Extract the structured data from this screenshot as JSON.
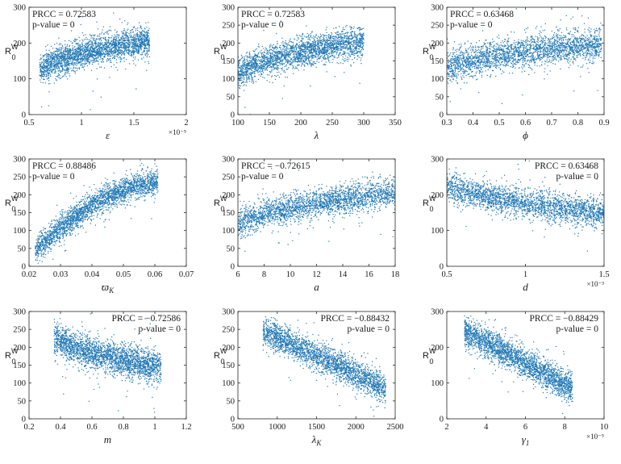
{
  "figure": {
    "point_color": "#1f77b4",
    "points_per_panel": 2500,
    "y_axis_label": "R",
    "y_axis_label_sup": "W",
    "y_axis_label_sub": "0"
  },
  "chart_data": [
    {
      "id": "eps",
      "type": "scatter",
      "xlabel": "ε",
      "prcc_text": "PRCC = 0.72583",
      "pvalue_text": "p-value = 0",
      "ann_position": "top-left",
      "xlim": [
        0.5,
        2
      ],
      "ylim": [
        0,
        300
      ],
      "xticks": [
        0.5,
        1,
        1.5,
        2
      ],
      "xtick_labels": [
        "0.5",
        "1",
        "1.5",
        "2"
      ],
      "yticks": [
        0,
        100,
        200,
        300
      ],
      "ytick_labels": [
        "0",
        "100",
        "200",
        "300"
      ],
      "x_multiplier": "×10⁻⁵",
      "x_range": [
        0.6,
        1.65
      ],
      "trend": "log",
      "y_start": 125,
      "y_end": 205,
      "noise": 20
    },
    {
      "id": "lambda",
      "type": "scatter",
      "xlabel": "λ",
      "prcc_text": "PRCC = 0.72583",
      "pvalue_text": "p-value = 0",
      "ann_position": "top-left",
      "xlim": [
        100,
        350
      ],
      "ylim": [
        0,
        300
      ],
      "xticks": [
        100,
        150,
        200,
        250,
        300,
        350
      ],
      "xtick_labels": [
        "100",
        "150",
        "200",
        "250",
        "300",
        "350"
      ],
      "yticks": [
        0,
        50,
        100,
        150,
        200,
        250,
        300
      ],
      "ytick_labels": [
        "0",
        "50",
        "100",
        "150",
        "200",
        "250",
        "300"
      ],
      "x_multiplier": "",
      "x_range": [
        100,
        300
      ],
      "trend": "log",
      "y_start": 115,
      "y_end": 205,
      "noise": 20
    },
    {
      "id": "phi",
      "type": "scatter",
      "xlabel": "ϕ",
      "prcc_text": "PRCC = 0.63468",
      "pvalue_text": "p-value = 0",
      "ann_position": "top-left",
      "xlim": [
        0.3,
        0.9
      ],
      "ylim": [
        0,
        300
      ],
      "xticks": [
        0.3,
        0.4,
        0.5,
        0.6,
        0.7,
        0.8,
        0.9
      ],
      "xtick_labels": [
        "0.3",
        "0.4",
        "0.5",
        "0.6",
        "0.7",
        "0.8",
        "0.9"
      ],
      "yticks": [
        0,
        50,
        100,
        150,
        200,
        250,
        300
      ],
      "ytick_labels": [
        "0",
        "50",
        "100",
        "150",
        "200",
        "250",
        "300"
      ],
      "x_multiplier": "",
      "x_range": [
        0.3,
        0.89
      ],
      "trend": "log",
      "y_start": 135,
      "y_end": 195,
      "noise": 22
    },
    {
      "id": "omega",
      "type": "scatter",
      "xlabel": "ϖ",
      "xlabel_sub": "K",
      "prcc_text": "PRCC = 0.88486",
      "pvalue_text": "p-value = 0",
      "ann_position": "top-left",
      "xlim": [
        0.02,
        0.07
      ],
      "ylim": [
        0,
        300
      ],
      "xticks": [
        0.02,
        0.03,
        0.04,
        0.05,
        0.06,
        0.07
      ],
      "xtick_labels": [
        "0.02",
        "0.03",
        "0.04",
        "0.05",
        "0.06",
        "0.07"
      ],
      "yticks": [
        0,
        50,
        100,
        150,
        200,
        250,
        300
      ],
      "ytick_labels": [
        "0",
        "50",
        "100",
        "150",
        "200",
        "250",
        "300"
      ],
      "x_multiplier": "",
      "x_range": [
        0.022,
        0.061
      ],
      "trend": "concave",
      "y_start": 45,
      "y_end": 235,
      "noise": 18
    },
    {
      "id": "a",
      "type": "scatter",
      "xlabel": "a",
      "prcc_text": "PRCC = −0.72615",
      "pvalue_text": "p-value = 0",
      "ann_position": "top-left",
      "xlim": [
        6,
        18
      ],
      "ylim": [
        0,
        300
      ],
      "xticks": [
        6,
        8,
        10,
        12,
        14,
        16,
        18
      ],
      "xtick_labels": [
        "6",
        "8",
        "10",
        "12",
        "14",
        "16",
        "18"
      ],
      "yticks": [
        0,
        50,
        100,
        150,
        200,
        250,
        300
      ],
      "ytick_labels": [
        "0",
        "50",
        "100",
        "150",
        "200",
        "250",
        "300"
      ],
      "x_multiplier": "",
      "x_range": [
        6,
        18
      ],
      "trend": "log",
      "y_start": 120,
      "y_end": 205,
      "noise": 20
    },
    {
      "id": "d",
      "type": "scatter",
      "xlabel": "d",
      "prcc_text": "PRCC = 0.63468",
      "pvalue_text": "p-value = 0",
      "ann_position": "top-right",
      "xlim": [
        0.5,
        1.5
      ],
      "ylim": [
        0,
        300
      ],
      "xticks": [
        0.5,
        1,
        1.5
      ],
      "xtick_labels": [
        "0.5",
        "1",
        "1.5"
      ],
      "yticks": [
        0,
        100,
        200,
        300
      ],
      "ytick_labels": [
        "0",
        "100",
        "200",
        "300"
      ],
      "x_multiplier": "×10⁻³",
      "x_range": [
        0.5,
        1.5
      ],
      "trend": "log",
      "y_start": 225,
      "y_end": 150,
      "noise": 20
    },
    {
      "id": "m",
      "type": "scatter",
      "xlabel": "m",
      "prcc_text": "PRCC = −0.72586",
      "pvalue_text": "p-value = 0",
      "ann_position": "top-right",
      "xlim": [
        0.2,
        1.2
      ],
      "ylim": [
        0,
        300
      ],
      "xticks": [
        0.2,
        0.4,
        0.6,
        0.8,
        1,
        1.2
      ],
      "xtick_labels": [
        "0.2",
        "0.4",
        "0.6",
        "0.8",
        "1",
        "1.2"
      ],
      "yticks": [
        0,
        50,
        100,
        150,
        200,
        250,
        300
      ],
      "ytick_labels": [
        "0",
        "50",
        "100",
        "150",
        "200",
        "250",
        "300"
      ],
      "x_multiplier": "",
      "x_range": [
        0.36,
        1.04
      ],
      "trend": "log",
      "y_start": 225,
      "y_end": 145,
      "noise": 22
    },
    {
      "id": "lambdaK",
      "type": "scatter",
      "xlabel": "λ",
      "xlabel_sub": "K",
      "prcc_text": "PRCC = −0.88432",
      "pvalue_text": "p-value = 0",
      "ann_position": "top-right",
      "xlim": [
        500,
        2500
      ],
      "ylim": [
        0,
        300
      ],
      "xticks": [
        500,
        1000,
        1500,
        2000,
        2500
      ],
      "xtick_labels": [
        "500",
        "1000",
        "1500",
        "2000",
        "2500"
      ],
      "yticks": [
        0,
        50,
        100,
        150,
        200,
        250,
        300
      ],
      "ytick_labels": [
        "0",
        "50",
        "100",
        "150",
        "200",
        "250",
        "300"
      ],
      "x_multiplier": "",
      "x_range": [
        820,
        2380
      ],
      "trend": "linear",
      "y_start": 245,
      "y_end": 85,
      "noise": 20
    },
    {
      "id": "gamma1",
      "type": "scatter",
      "xlabel": "γ",
      "xlabel_sub": "1",
      "prcc_text": "PRCC = −0.88429",
      "pvalue_text": "p-value = 0",
      "ann_position": "top-right",
      "xlim": [
        2,
        10
      ],
      "ylim": [
        0,
        300
      ],
      "xticks": [
        2,
        4,
        6,
        8,
        10
      ],
      "xtick_labels": [
        "2",
        "4",
        "6",
        "8",
        "10"
      ],
      "yticks": [
        0,
        100,
        200,
        300
      ],
      "ytick_labels": [
        "0",
        "100",
        "200",
        "300"
      ],
      "x_multiplier": "×10⁻⁵",
      "x_range": [
        2.9,
        8.4
      ],
      "trend": "linear",
      "y_start": 245,
      "y_end": 85,
      "noise": 20
    }
  ]
}
